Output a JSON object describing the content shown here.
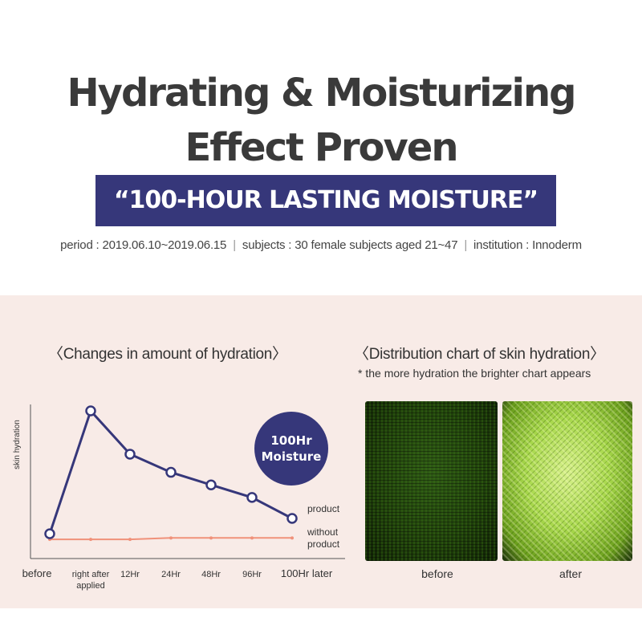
{
  "header": {
    "title_line1": "Hydrating & Moisturizing",
    "title_line2": "Effect Proven",
    "banner": "“100-HOUR LASTING MOISTURE”",
    "period": "period : 2019.06.10~2019.06.15",
    "subjects": "subjects : 30 female subjects aged 21~47",
    "institution": "institution : Innoderm",
    "separator": "|"
  },
  "left_chart": {
    "title": "〈Changes in amount of hydration〉",
    "badge_line1": "100Hr",
    "badge_line2": "Moisture"
  },
  "right_chart": {
    "title": "〈Distribution chart of skin hydration〉",
    "note": "* the more hydration the brighter chart appears",
    "before_label": "before",
    "after_label": "after"
  },
  "colors": {
    "product": "#36377a",
    "without_product": "#f0917a",
    "banner_bg": "#36377a",
    "panel_bg": "#f8ebe7"
  },
  "chart_data": {
    "type": "line",
    "title": "Changes in amount of hydration",
    "ylabel": "skin hydration",
    "xlabel": "",
    "categories": [
      "before",
      "right after applied",
      "12Hr",
      "24Hr",
      "48Hr",
      "96Hr",
      "100Hr later"
    ],
    "ylim": [
      0,
      100
    ],
    "grid": false,
    "legend": "right",
    "series": [
      {
        "name": "product",
        "values": [
          12,
          100,
          69,
          56,
          47,
          38,
          23
        ]
      },
      {
        "name": "without product",
        "values": [
          8,
          8,
          8,
          9,
          9,
          9,
          9
        ]
      }
    ]
  }
}
